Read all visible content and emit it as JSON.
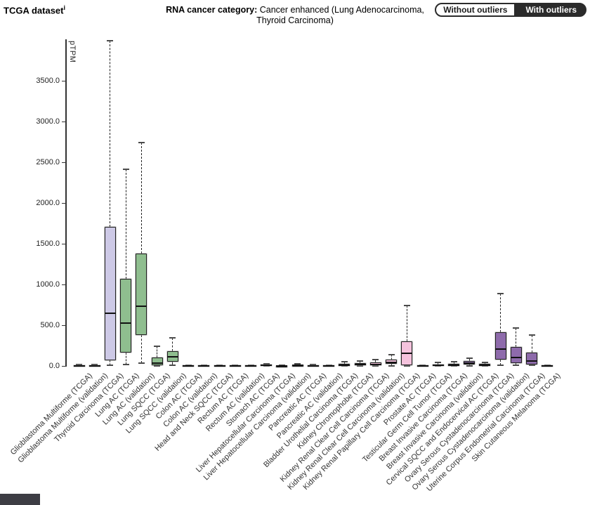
{
  "header": {
    "dataset_title": "TCGA dataset",
    "dataset_info_superscript": "i",
    "category_label": "RNA cancer category:",
    "category_value": "Cancer enhanced (Lung Adenocarcinoma, Thyroid Carcinoma)",
    "toggle": {
      "without_outliers_label": "Without outliers",
      "with_outliers_label": "With outliers",
      "selected": "With outliers"
    }
  },
  "colors": {
    "lavender": "#cdc9e6",
    "green": "#8fbe8f",
    "pink": "#f5c3dd",
    "purple": "#8e6bab",
    "flat_gray": "#c8c8c8",
    "toggle_dark": "#2b2b2b",
    "axis": "#333333"
  },
  "chart_data": {
    "type": "boxplot",
    "title": "",
    "xlabel": "",
    "ylabel": "pTPM",
    "ylim": [
      0,
      4000
    ],
    "grid": false,
    "ytick_labels": [
      "0.0",
      "500.0",
      "1000.0",
      "1500.0",
      "2000.0",
      "2500.0",
      "3000.0",
      "3500.0"
    ],
    "boxes": [
      {
        "label": "Glioblastoma Multiforme (TCGA)",
        "color": "#c8c8c8",
        "min": 0,
        "q1": 1,
        "median": 3,
        "q3": 7,
        "max": 14
      },
      {
        "label": "Glioblastoma Multiforme (validation)",
        "color": "#c8c8c8",
        "min": 0,
        "q1": 1,
        "median": 3,
        "q3": 7,
        "max": 14
      },
      {
        "label": "Thyroid Carcinoma (TCGA)",
        "color": "#cdc9e6",
        "min": 5,
        "q1": 69,
        "median": 647,
        "q3": 1707,
        "max": 3990
      },
      {
        "label": "Lung AC (TCGA)",
        "color": "#8fbe8f",
        "min": 15,
        "q1": 160,
        "median": 525,
        "q3": 1070,
        "max": 2410
      },
      {
        "label": "Lung AC (validation)",
        "color": "#8fbe8f",
        "min": 35,
        "q1": 380,
        "median": 730,
        "q3": 1380,
        "max": 2740
      },
      {
        "label": "Lung SQCC (TCGA)",
        "color": "#8fbe8f",
        "min": 2,
        "q1": 8,
        "median": 34,
        "q3": 103,
        "max": 240
      },
      {
        "label": "Lung SQCC (validation)",
        "color": "#8fbe8f",
        "min": 9,
        "q1": 52,
        "median": 112,
        "q3": 181,
        "max": 345
      },
      {
        "label": "Colon AC (TCGA)",
        "color": "#c8c8c8",
        "min": 0,
        "q1": 1,
        "median": 3,
        "q3": 6,
        "max": 12
      },
      {
        "label": "Colon AC (validation)",
        "color": "#c8c8c8",
        "min": 0,
        "q1": 1,
        "median": 2,
        "q3": 5,
        "max": 10
      },
      {
        "label": "Head and Neck SQCC (TCGA)",
        "color": "#c8c8c8",
        "min": 0,
        "q1": 1,
        "median": 3,
        "q3": 6,
        "max": 12
      },
      {
        "label": "Rectum AC (TCGA)",
        "color": "#c8c8c8",
        "min": 0,
        "q1": 1,
        "median": 2,
        "q3": 5,
        "max": 10
      },
      {
        "label": "Rectum AC (validation)",
        "color": "#c8c8c8",
        "min": 0,
        "q1": 1,
        "median": 3,
        "q3": 6,
        "max": 12
      },
      {
        "label": "Stomach AC (TCGA)",
        "color": "#c8c8c8",
        "min": 0,
        "q1": 2,
        "median": 6,
        "q3": 14,
        "max": 28
      },
      {
        "label": "Liver Hepatocellular Carcinoma (TCGA)",
        "color": "#c8c8c8",
        "min": 0,
        "q1": 1,
        "median": 2,
        "q3": 4,
        "max": 8
      },
      {
        "label": "Liver Hepatocellular Carcinoma (validation)",
        "color": "#c8c8c8",
        "min": 0,
        "q1": 2,
        "median": 5,
        "q3": 12,
        "max": 30
      },
      {
        "label": "Pancreatic AC (TCGA)",
        "color": "#c8c8c8",
        "min": 0,
        "q1": 1,
        "median": 3,
        "q3": 8,
        "max": 20
      },
      {
        "label": "Pancreatic AC (validation)",
        "color": "#c8c8c8",
        "min": 0,
        "q1": 1,
        "median": 2,
        "q3": 5,
        "max": 10
      },
      {
        "label": "Bladder Urothelial Carcinoma (TCGA)",
        "color": "#c8c8c8",
        "min": 0,
        "q1": 3,
        "median": 9,
        "q3": 25,
        "max": 48
      },
      {
        "label": "Kidney Chromophobe (TCGA)",
        "color": "#f5c3dd",
        "min": 2,
        "q1": 8,
        "median": 18,
        "q3": 38,
        "max": 60
      },
      {
        "label": "Kidney Renal Clear Cell Carcinoma (TCGA)",
        "color": "#f5c3dd",
        "min": 2,
        "q1": 9,
        "median": 20,
        "q3": 45,
        "max": 78
      },
      {
        "label": "Kidney Renal Clear Cell Carcinoma (validation)",
        "color": "#f5c3dd",
        "min": 3,
        "q1": 25,
        "median": 45,
        "q3": 78,
        "max": 140
      },
      {
        "label": "Kidney Renal Papillary Cell Carcinoma (TCGA)",
        "color": "#f5c3dd",
        "min": 2,
        "q1": 10,
        "median": 155,
        "q3": 300,
        "max": 740
      },
      {
        "label": "Prostate AC (TCGA)",
        "color": "#c8c8c8",
        "min": 0,
        "q1": 1,
        "median": 2,
        "q3": 5,
        "max": 10
      },
      {
        "label": "Testicular Germ Cell Tumor (TCGA)",
        "color": "#8c86a8",
        "min": 0,
        "q1": 2,
        "median": 8,
        "q3": 20,
        "max": 42
      },
      {
        "label": "Breast Invasive Carcinoma (TCGA)",
        "color": "#a18cbb",
        "min": 0,
        "q1": 3,
        "median": 10,
        "q3": 28,
        "max": 52
      },
      {
        "label": "Breast Invasive Carcinoma (validation)",
        "color": "#9d7fb8",
        "min": 3,
        "q1": 15,
        "median": 35,
        "q3": 60,
        "max": 95
      },
      {
        "label": "Cervical SQCC and Endocervical AC (TCGA)",
        "color": "#8e6bab",
        "min": 0,
        "q1": 2,
        "median": 8,
        "q3": 22,
        "max": 45
      },
      {
        "label": "Ovary Serous Cystadenocarcinoma (TCGA)",
        "color": "#8e6bab",
        "min": 10,
        "q1": 80,
        "median": 205,
        "q3": 415,
        "max": 890
      },
      {
        "label": "Ovary Serous Cystadenocarcinoma (validation)",
        "color": "#8e6bab",
        "min": 10,
        "q1": 35,
        "median": 105,
        "q3": 235,
        "max": 465
      },
      {
        "label": "Uterine Corpus Endometrial Carcinoma (TCGA)",
        "color": "#8e6bab",
        "min": 5,
        "q1": 17,
        "median": 60,
        "q3": 165,
        "max": 380
      },
      {
        "label": "Skin Cutaneous Melanoma (TCGA)",
        "color": "#c8c8c8",
        "min": 0,
        "q1": 1,
        "median": 2,
        "q3": 5,
        "max": 10
      }
    ]
  }
}
